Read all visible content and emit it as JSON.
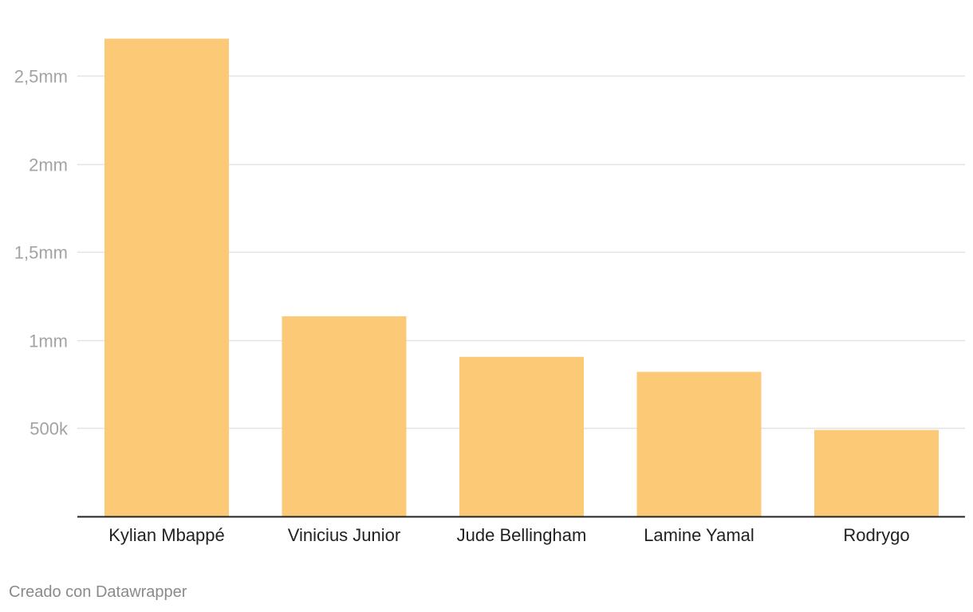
{
  "chart_data": {
    "type": "bar",
    "categories": [
      "Kylian Mbappé",
      "Vinicius Junior",
      "Jude Bellingham",
      "Lamine Yamal",
      "Rodrygo"
    ],
    "values": [
      2710000,
      1135000,
      905000,
      820000,
      490000
    ],
    "ylim": [
      0,
      2750000
    ],
    "yticks": [
      {
        "value": 500000,
        "label": "500k"
      },
      {
        "value": 1000000,
        "label": "1mm"
      },
      {
        "value": 1500000,
        "label": "1,5mm"
      },
      {
        "value": 2000000,
        "label": "2mm"
      },
      {
        "value": 2500000,
        "label": "2,5mm"
      }
    ],
    "grid": true,
    "bar_color": "#fcc977",
    "grid_color": "#e3e3e3",
    "axis_color": "#222222"
  },
  "footer": {
    "credit": "Creado con Datawrapper"
  }
}
